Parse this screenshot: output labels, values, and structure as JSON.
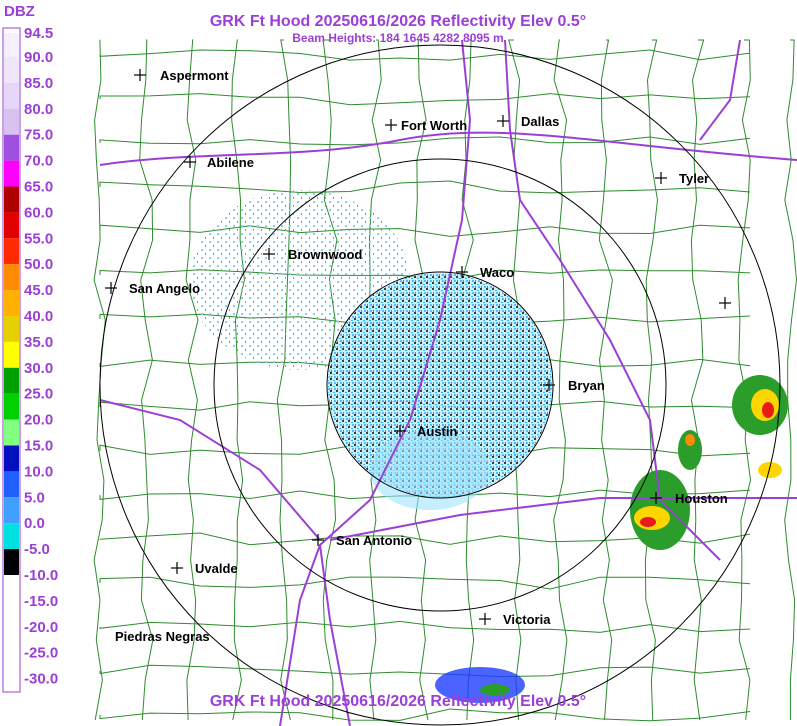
{
  "header": {
    "title": "GRK Ft Hood 20250616/2026 Reflectivity Elev 0.5°",
    "subtitle": "Beam Heights: 184 1645 4282 8095 m",
    "footer": "GRK Ft Hood 20250616/2026 Reflectivity Elev 0.5°"
  },
  "legend": {
    "unit": "DBZ",
    "labels": [
      "94.5",
      "90.0",
      "85.0",
      "80.0",
      "75.0",
      "70.0",
      "65.0",
      "60.0",
      "55.0",
      "50.0",
      "45.0",
      "40.0",
      "35.0",
      "30.0",
      "25.0",
      "20.0",
      "15.0",
      "10.0",
      "5.0",
      "0.0",
      "-5.0",
      "-10.0",
      "-15.0",
      "-20.0",
      "-25.0",
      "-30.0"
    ]
  },
  "cities": [
    {
      "label": "Aspermont"
    },
    {
      "label": "Abilene"
    },
    {
      "label": "Fort Worth"
    },
    {
      "label": "Dallas"
    },
    {
      "label": "Tyler"
    },
    {
      "label": "Brownwood"
    },
    {
      "label": "Waco"
    },
    {
      "label": "San Angelo"
    },
    {
      "label": "Bryan"
    },
    {
      "label": "Austin"
    },
    {
      "label": "Houston"
    },
    {
      "label": "San Antonio"
    },
    {
      "label": "Uvalde"
    },
    {
      "label": "Victoria"
    },
    {
      "label": "Piedras Negras"
    }
  ]
}
